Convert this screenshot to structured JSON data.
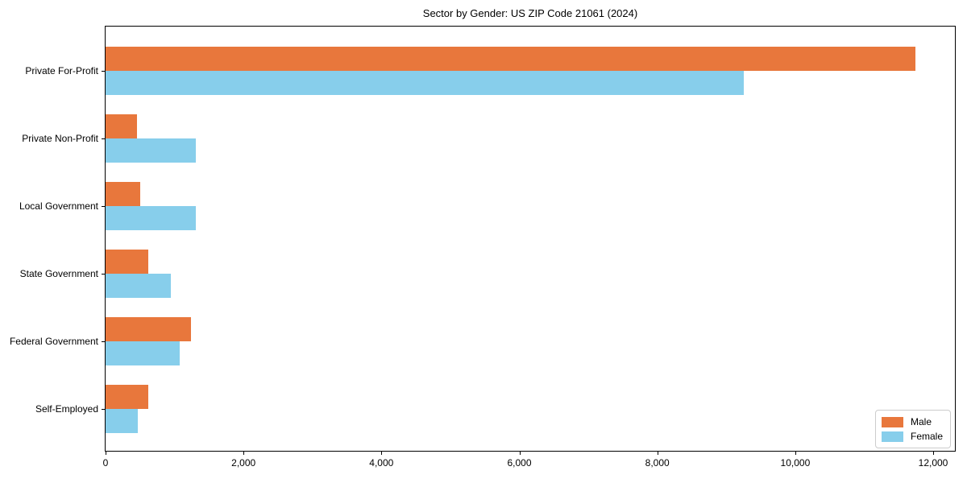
{
  "chart_data": {
    "type": "bar",
    "orientation": "horizontal",
    "title": "Sector by Gender: US ZIP Code 21061 (2024)",
    "categories": [
      "Private For-Profit",
      "Private Non-Profit",
      "Local Government",
      "State Government",
      "Federal Government",
      "Self-Employed"
    ],
    "series": [
      {
        "name": "Male",
        "color": "#E8773C",
        "values": [
          11740,
          460,
          500,
          615,
          1240,
          615
        ]
      },
      {
        "name": "Female",
        "color": "#87CEEB",
        "values": [
          9250,
          1310,
          1310,
          940,
          1070,
          470
        ]
      }
    ],
    "xlim": [
      0,
      12315
    ],
    "xticks": [
      0,
      2000,
      4000,
      6000,
      8000,
      10000,
      12000
    ],
    "xtick_labels": [
      "0",
      "2,000",
      "4,000",
      "6,000",
      "8,000",
      "10,000",
      "12,000"
    ],
    "xlabel": "",
    "ylabel": "",
    "grid": false,
    "legend": {
      "position": "lower right",
      "entries": [
        "Male",
        "Female"
      ]
    },
    "colors": {
      "male": "#E8773C",
      "female": "#87CEEB",
      "spine": "#000000",
      "legend_border": "#cccccc",
      "background": "#ffffff"
    }
  }
}
